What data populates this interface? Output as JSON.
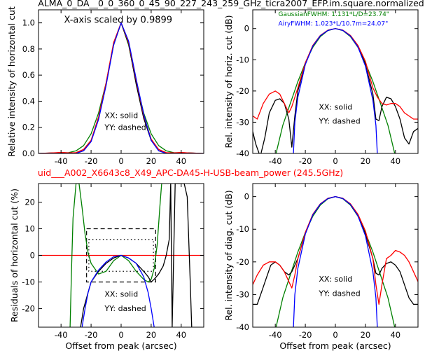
{
  "figure": {
    "title": "ALMA_0_DA__0_0_360_0_45_90_227_243_259_GHz_ticra2007_EFP.im.square.normalized",
    "subtitle": "uid___A002_X6643c8_X49_APC-DA45-H-USB-beam_power (245.5GHz)",
    "subtitle_color": "#ff0000"
  },
  "colors": {
    "red": "#ff0000",
    "green": "#008000",
    "blue": "#0000ff",
    "black": "#000000"
  },
  "chart_data": [
    {
      "id": "tl",
      "type": "line",
      "title": "",
      "xlabel": "",
      "ylabel": "Relative intensity of horizontal cut",
      "xlim": [
        -55,
        55
      ],
      "ylim": [
        0,
        1.1
      ],
      "xticks": [
        -40,
        -20,
        0,
        20,
        40
      ],
      "yticks": [
        0.0,
        0.2,
        0.4,
        0.6,
        0.8,
        1.0
      ],
      "ytick_decimals": 1,
      "annotations": [
        {
          "text": "X-axis scaled by 0.9899",
          "x": -38,
          "y": 1.0,
          "size": 13
        },
        {
          "text": "XX: solid",
          "x": -11,
          "y": 0.27,
          "size": 11
        },
        {
          "text": "YY: dashed",
          "x": -11,
          "y": 0.18,
          "size": 11
        }
      ],
      "series": [
        {
          "color": "green",
          "x": [
            -55,
            -45,
            -40,
            -35,
            -30,
            -25,
            -20,
            -15,
            -10,
            -5,
            0,
            5,
            10,
            15,
            20,
            25,
            30,
            35,
            40,
            45,
            55
          ],
          "y": [
            0,
            0.003,
            0.005,
            0.006,
            0.02,
            0.06,
            0.15,
            0.31,
            0.54,
            0.83,
            1.0,
            0.83,
            0.55,
            0.31,
            0.15,
            0.06,
            0.02,
            0.006,
            0.005,
            0.003,
            0
          ]
        },
        {
          "color": "black",
          "x": [
            -55,
            -45,
            -40,
            -35,
            -30,
            -25,
            -20,
            -15,
            -10,
            -5,
            0,
            5,
            10,
            15,
            20,
            25,
            30,
            35,
            40,
            45,
            55
          ],
          "y": [
            0,
            0.004,
            0.006,
            0.004,
            0.005,
            0.03,
            0.1,
            0.27,
            0.53,
            0.84,
            1.0,
            0.84,
            0.53,
            0.27,
            0.1,
            0.03,
            0.005,
            0.004,
            0.006,
            0.004,
            0
          ]
        },
        {
          "color": "red",
          "x": [
            -55,
            -45,
            -40,
            -35,
            -30,
            -25,
            -20,
            -15,
            -10,
            -5,
            0,
            5,
            10,
            15,
            20,
            25,
            30,
            35,
            40,
            45,
            55
          ],
          "y": [
            0,
            0.005,
            0.008,
            0.005,
            0.006,
            0.03,
            0.1,
            0.28,
            0.54,
            0.85,
            1.0,
            0.85,
            0.56,
            0.29,
            0.11,
            0.03,
            0.006,
            0.005,
            0.007,
            0.004,
            0
          ]
        },
        {
          "color": "blue",
          "x": [
            -55,
            -30,
            -25,
            -20,
            -15,
            -10,
            -5,
            0,
            5,
            10,
            15,
            20,
            25,
            30,
            55
          ],
          "y": [
            0,
            0,
            0.02,
            0.09,
            0.26,
            0.52,
            0.83,
            1.0,
            0.86,
            0.57,
            0.3,
            0.1,
            0.02,
            0,
            0
          ]
        }
      ]
    },
    {
      "id": "tr",
      "type": "line",
      "title": "",
      "xlabel": "",
      "ylabel": "Rel. intensity of horiz. cut (dB)",
      "xlim": [
        -55,
        55
      ],
      "ylim": [
        -40,
        6
      ],
      "xticks": [
        -40,
        -20,
        0,
        20,
        40
      ],
      "yticks": [
        -40,
        -30,
        -20,
        -10,
        0
      ],
      "ytick_decimals": 0,
      "annotations": [
        {
          "text": "GaussianFWHM: 1.131*L/D=23.74\"",
          "x": -38,
          "y": 4,
          "size": 9,
          "color": "green"
        },
        {
          "text": "AiryFWHM: 1.023*L/10.7m=24.07\"",
          "x": -38,
          "y": 1,
          "size": 9,
          "color": "blue"
        },
        {
          "text": "XX: solid",
          "x": -11,
          "y": -26,
          "size": 11
        },
        {
          "text": "YY: dashed",
          "x": -11,
          "y": -30.5,
          "size": 11
        }
      ],
      "series": [
        {
          "color": "green",
          "x": [
            -45,
            -40,
            -35,
            -30,
            -25,
            -20,
            -15,
            -10,
            -5,
            0,
            5,
            10,
            15,
            20,
            25,
            30,
            35,
            40,
            45
          ],
          "y": [
            -52,
            -41,
            -31,
            -24,
            -17,
            -11,
            -6,
            -2.6,
            -0.65,
            0,
            -0.65,
            -2.6,
            -6,
            -11,
            -17,
            -24,
            -31,
            -41,
            -52
          ]
        },
        {
          "color": "black",
          "x": [
            -55,
            -53,
            -50,
            -47,
            -44,
            -40,
            -37,
            -34,
            -31,
            -29,
            -27,
            -25,
            -20,
            -15,
            -10,
            -5,
            0,
            5,
            10,
            15,
            20,
            25,
            27,
            29,
            31,
            34,
            37,
            40,
            43,
            46,
            49,
            52,
            55
          ],
          "y": [
            -33,
            -37,
            -41,
            -35,
            -27,
            -23,
            -22.5,
            -24,
            -29,
            -38,
            -28,
            -20,
            -11,
            -5.5,
            -2.3,
            -0.6,
            0,
            -0.6,
            -2.4,
            -5.8,
            -11.5,
            -21,
            -29,
            -29.5,
            -25,
            -22,
            -22.5,
            -25,
            -29,
            -35,
            -37,
            -33,
            -32
          ]
        },
        {
          "color": "red",
          "x": [
            -55,
            -52,
            -48,
            -44,
            -40,
            -37,
            -34,
            -31,
            -29,
            -27,
            -25,
            -20,
            -15,
            -10,
            -5,
            0,
            5,
            10,
            15,
            20,
            25,
            28,
            31,
            34,
            37,
            40,
            43,
            46,
            49,
            52,
            55
          ],
          "y": [
            -28,
            -29,
            -24,
            -21,
            -20,
            -21,
            -24,
            -27,
            -25,
            -22,
            -19,
            -11,
            -5.4,
            -2.2,
            -0.5,
            0,
            -0.5,
            -2.2,
            -5.4,
            -10.5,
            -19,
            -22,
            -24,
            -24.5,
            -24,
            -24,
            -25,
            -27,
            -28,
            -29,
            -29
          ]
        },
        {
          "color": "blue",
          "x": [
            -28,
            -27,
            -25,
            -20,
            -15,
            -10,
            -5,
            0,
            5,
            10,
            15,
            20,
            25,
            27,
            28
          ],
          "y": [
            -41,
            -30,
            -22,
            -11.5,
            -5.6,
            -2.3,
            -0.6,
            0,
            -0.6,
            -2.4,
            -5.9,
            -12,
            -23,
            -31,
            -41
          ]
        }
      ]
    },
    {
      "id": "bl",
      "type": "line",
      "title": "",
      "xlabel": "Offset from peak (arcsec)",
      "ylabel": "Residuals of horizontal cut (%)",
      "xlim": [
        -55,
        55
      ],
      "ylim": [
        -27,
        27
      ],
      "xticks": [
        -40,
        -20,
        0,
        20,
        40
      ],
      "yticks": [
        -20,
        -10,
        0,
        10,
        20
      ],
      "ytick_decimals": 0,
      "annotations": [
        {
          "text": "XX: solid",
          "x": -11,
          "y": -15.5,
          "size": 11
        },
        {
          "text": "YY: dashed",
          "x": -11,
          "y": -21,
          "size": 11
        }
      ],
      "series": [
        {
          "color": "red",
          "x": [
            -55,
            55
          ],
          "y": [
            0,
            0
          ]
        },
        {
          "color": "green",
          "x": [
            -34,
            -33,
            -32,
            -30,
            -28,
            -26,
            -24,
            -22,
            -20,
            -15,
            -10,
            -5,
            0,
            5,
            10,
            15,
            18,
            20,
            22,
            24,
            26,
            27
          ],
          "y": [
            -27,
            -5,
            14,
            27,
            27,
            18,
            8,
            1,
            -3,
            -7,
            -6,
            -2,
            0,
            -2,
            -6,
            -9,
            -10,
            -9,
            -5,
            4,
            20,
            27
          ]
        },
        {
          "color": "black",
          "x": [
            -27,
            -25,
            -22,
            -20,
            -15,
            -10,
            -5,
            0,
            5,
            10,
            15,
            18,
            20,
            22,
            25,
            28,
            30,
            32,
            33,
            34,
            36,
            38,
            40,
            42,
            44,
            46,
            47
          ],
          "y": [
            -27,
            -20,
            -14,
            -10,
            -6,
            -3,
            -1,
            0,
            -1,
            -3,
            -6,
            -8,
            -10,
            -9,
            -7,
            -4,
            0,
            6,
            27,
            -27,
            27,
            27,
            27,
            27,
            22,
            -10,
            -27
          ]
        },
        {
          "color": "blue",
          "x": [
            -26,
            -24,
            -22,
            -20,
            -15,
            -10,
            -5,
            0,
            5,
            10,
            15,
            18,
            20,
            22
          ],
          "y": [
            -27,
            -20,
            -14,
            -10,
            -5.5,
            -2.5,
            -0.5,
            0,
            -1,
            -3,
            -8,
            -14,
            -20,
            -27
          ]
        }
      ]
    },
    {
      "id": "br",
      "type": "line",
      "title": "",
      "xlabel": "Offset from peak (arcsec)",
      "ylabel": "Rel. intensity of diag. cut (dB)",
      "xlim": [
        -55,
        55
      ],
      "ylim": [
        -40,
        4
      ],
      "xticks": [
        -40,
        -20,
        0,
        20,
        40
      ],
      "yticks": [
        -40,
        -30,
        -20,
        -10,
        0
      ],
      "ytick_decimals": 0,
      "annotations": [
        {
          "text": "XX: solid",
          "x": -11,
          "y": -26,
          "size": 11
        },
        {
          "text": "YY: dashed",
          "x": -11,
          "y": -30.5,
          "size": 11
        }
      ],
      "series": [
        {
          "color": "green",
          "x": [
            -45,
            -40,
            -35,
            -30,
            -25,
            -20,
            -15,
            -10,
            -5,
            0,
            5,
            10,
            15,
            20,
            25,
            30,
            35,
            40,
            45
          ],
          "y": [
            -52,
            -41,
            -31,
            -24,
            -17,
            -11,
            -6,
            -2.6,
            -0.65,
            0,
            -0.65,
            -2.6,
            -6,
            -11,
            -17,
            -24,
            -31,
            -41,
            -52
          ]
        },
        {
          "color": "black",
          "x": [
            -55,
            -52,
            -49,
            -46,
            -43,
            -40,
            -37,
            -34,
            -31,
            -29,
            -27,
            -25,
            -20,
            -15,
            -10,
            -5,
            0,
            5,
            10,
            15,
            20,
            25,
            27,
            29,
            31,
            34,
            37,
            40,
            43,
            46,
            49,
            52,
            55
          ],
          "y": [
            -33,
            -33,
            -29,
            -25,
            -21,
            -20,
            -21,
            -23,
            -24,
            -23,
            -21,
            -19,
            -11,
            -5.5,
            -2.3,
            -0.6,
            0,
            -0.6,
            -2.4,
            -5.8,
            -11.5,
            -19,
            -23.5,
            -24,
            -22,
            -20.5,
            -20,
            -21,
            -23,
            -27,
            -31,
            -33,
            -33
          ]
        },
        {
          "color": "red",
          "x": [
            -55,
            -52,
            -48,
            -44,
            -40,
            -37,
            -34,
            -31,
            -29,
            -27,
            -25,
            -20,
            -15,
            -10,
            -5,
            0,
            5,
            10,
            15,
            20,
            25,
            27,
            29,
            31,
            34,
            37,
            40,
            43,
            46,
            49,
            52,
            55
          ],
          "y": [
            -27,
            -24,
            -21,
            -20,
            -20,
            -21,
            -23,
            -26,
            -28,
            -24,
            -19,
            -11,
            -5.4,
            -2.2,
            -0.5,
            0,
            -0.5,
            -2.2,
            -5.4,
            -10.5,
            -19,
            -27,
            -33,
            -27,
            -19,
            -18,
            -16.5,
            -17,
            -18,
            -20,
            -23,
            -26
          ]
        },
        {
          "color": "blue",
          "x": [
            -28,
            -27,
            -25,
            -20,
            -15,
            -10,
            -5,
            0,
            5,
            10,
            15,
            20,
            25,
            27,
            28
          ],
          "y": [
            -41,
            -30,
            -22,
            -11.5,
            -5.6,
            -2.3,
            -0.6,
            0,
            -0.6,
            -2.4,
            -5.9,
            -12,
            -23,
            -31,
            -41
          ]
        }
      ]
    }
  ]
}
